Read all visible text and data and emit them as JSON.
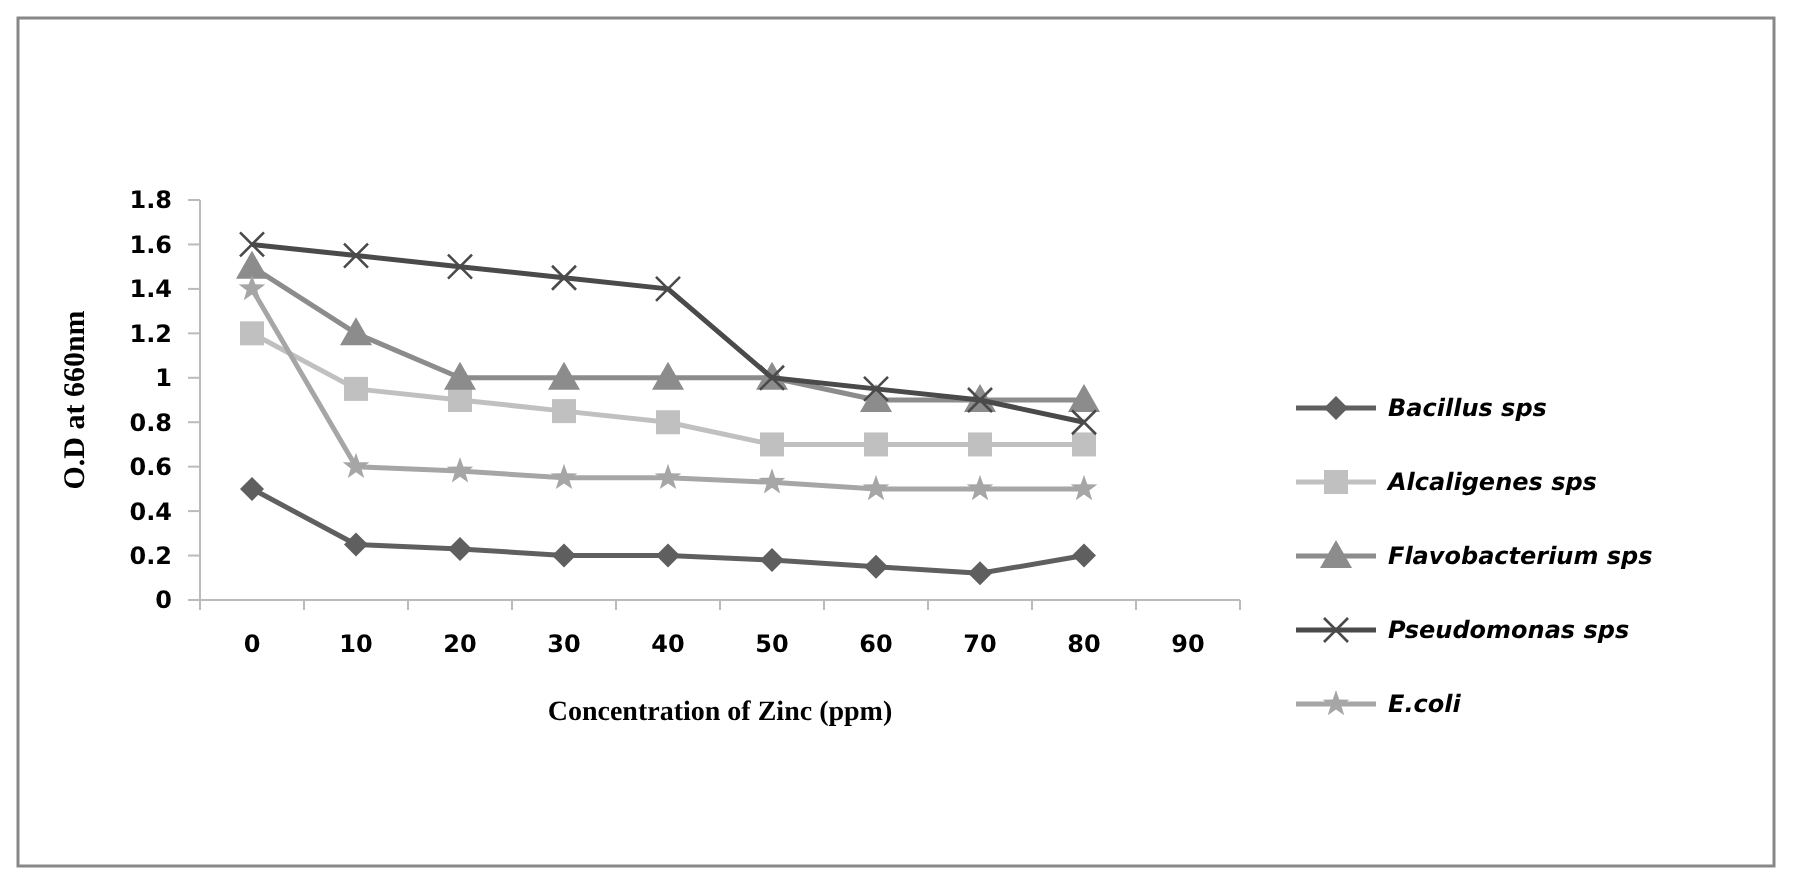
{
  "chart_data": {
    "type": "line",
    "xlabel": "Concentration of Zinc (ppm)",
    "ylabel": "O.D at 660nm",
    "categories": [
      "0",
      "10",
      "20",
      "30",
      "40",
      "50",
      "60",
      "70",
      "80",
      "90"
    ],
    "ylim": [
      0,
      1.8
    ],
    "yticks": [
      0,
      0.2,
      0.4,
      0.6,
      0.8,
      1,
      1.2,
      1.4,
      1.6,
      1.8
    ],
    "grid": false,
    "legend": "right",
    "series": [
      {
        "name": "Bacillus sps",
        "color": "#5f5f5f",
        "marker": "diamond",
        "values": [
          0.5,
          0.25,
          0.23,
          0.2,
          0.2,
          0.18,
          0.15,
          0.12,
          0.2,
          null
        ]
      },
      {
        "name": "Alcaligenes sps",
        "color": "#c0c0c0",
        "marker": "square",
        "values": [
          1.2,
          0.95,
          0.9,
          0.85,
          0.8,
          0.7,
          0.7,
          0.7,
          0.7,
          null
        ]
      },
      {
        "name": "Flavobacterium sps",
        "color": "#8c8c8c",
        "marker": "triangle",
        "values": [
          1.5,
          1.2,
          1,
          1,
          1,
          1,
          0.9,
          0.9,
          0.9,
          null
        ]
      },
      {
        "name": "Pseudomonas sps",
        "color": "#4a4a4a",
        "marker": "cross",
        "values": [
          1.6,
          1.55,
          1.5,
          1.45,
          1.4,
          1,
          0.95,
          0.9,
          0.8,
          null
        ]
      },
      {
        "name": "E.coli",
        "color": "#a6a6a6",
        "marker": "star",
        "values": [
          1.4,
          0.6,
          0.58,
          0.55,
          0.55,
          0.53,
          0.5,
          0.5,
          0.5,
          null
        ]
      }
    ]
  }
}
